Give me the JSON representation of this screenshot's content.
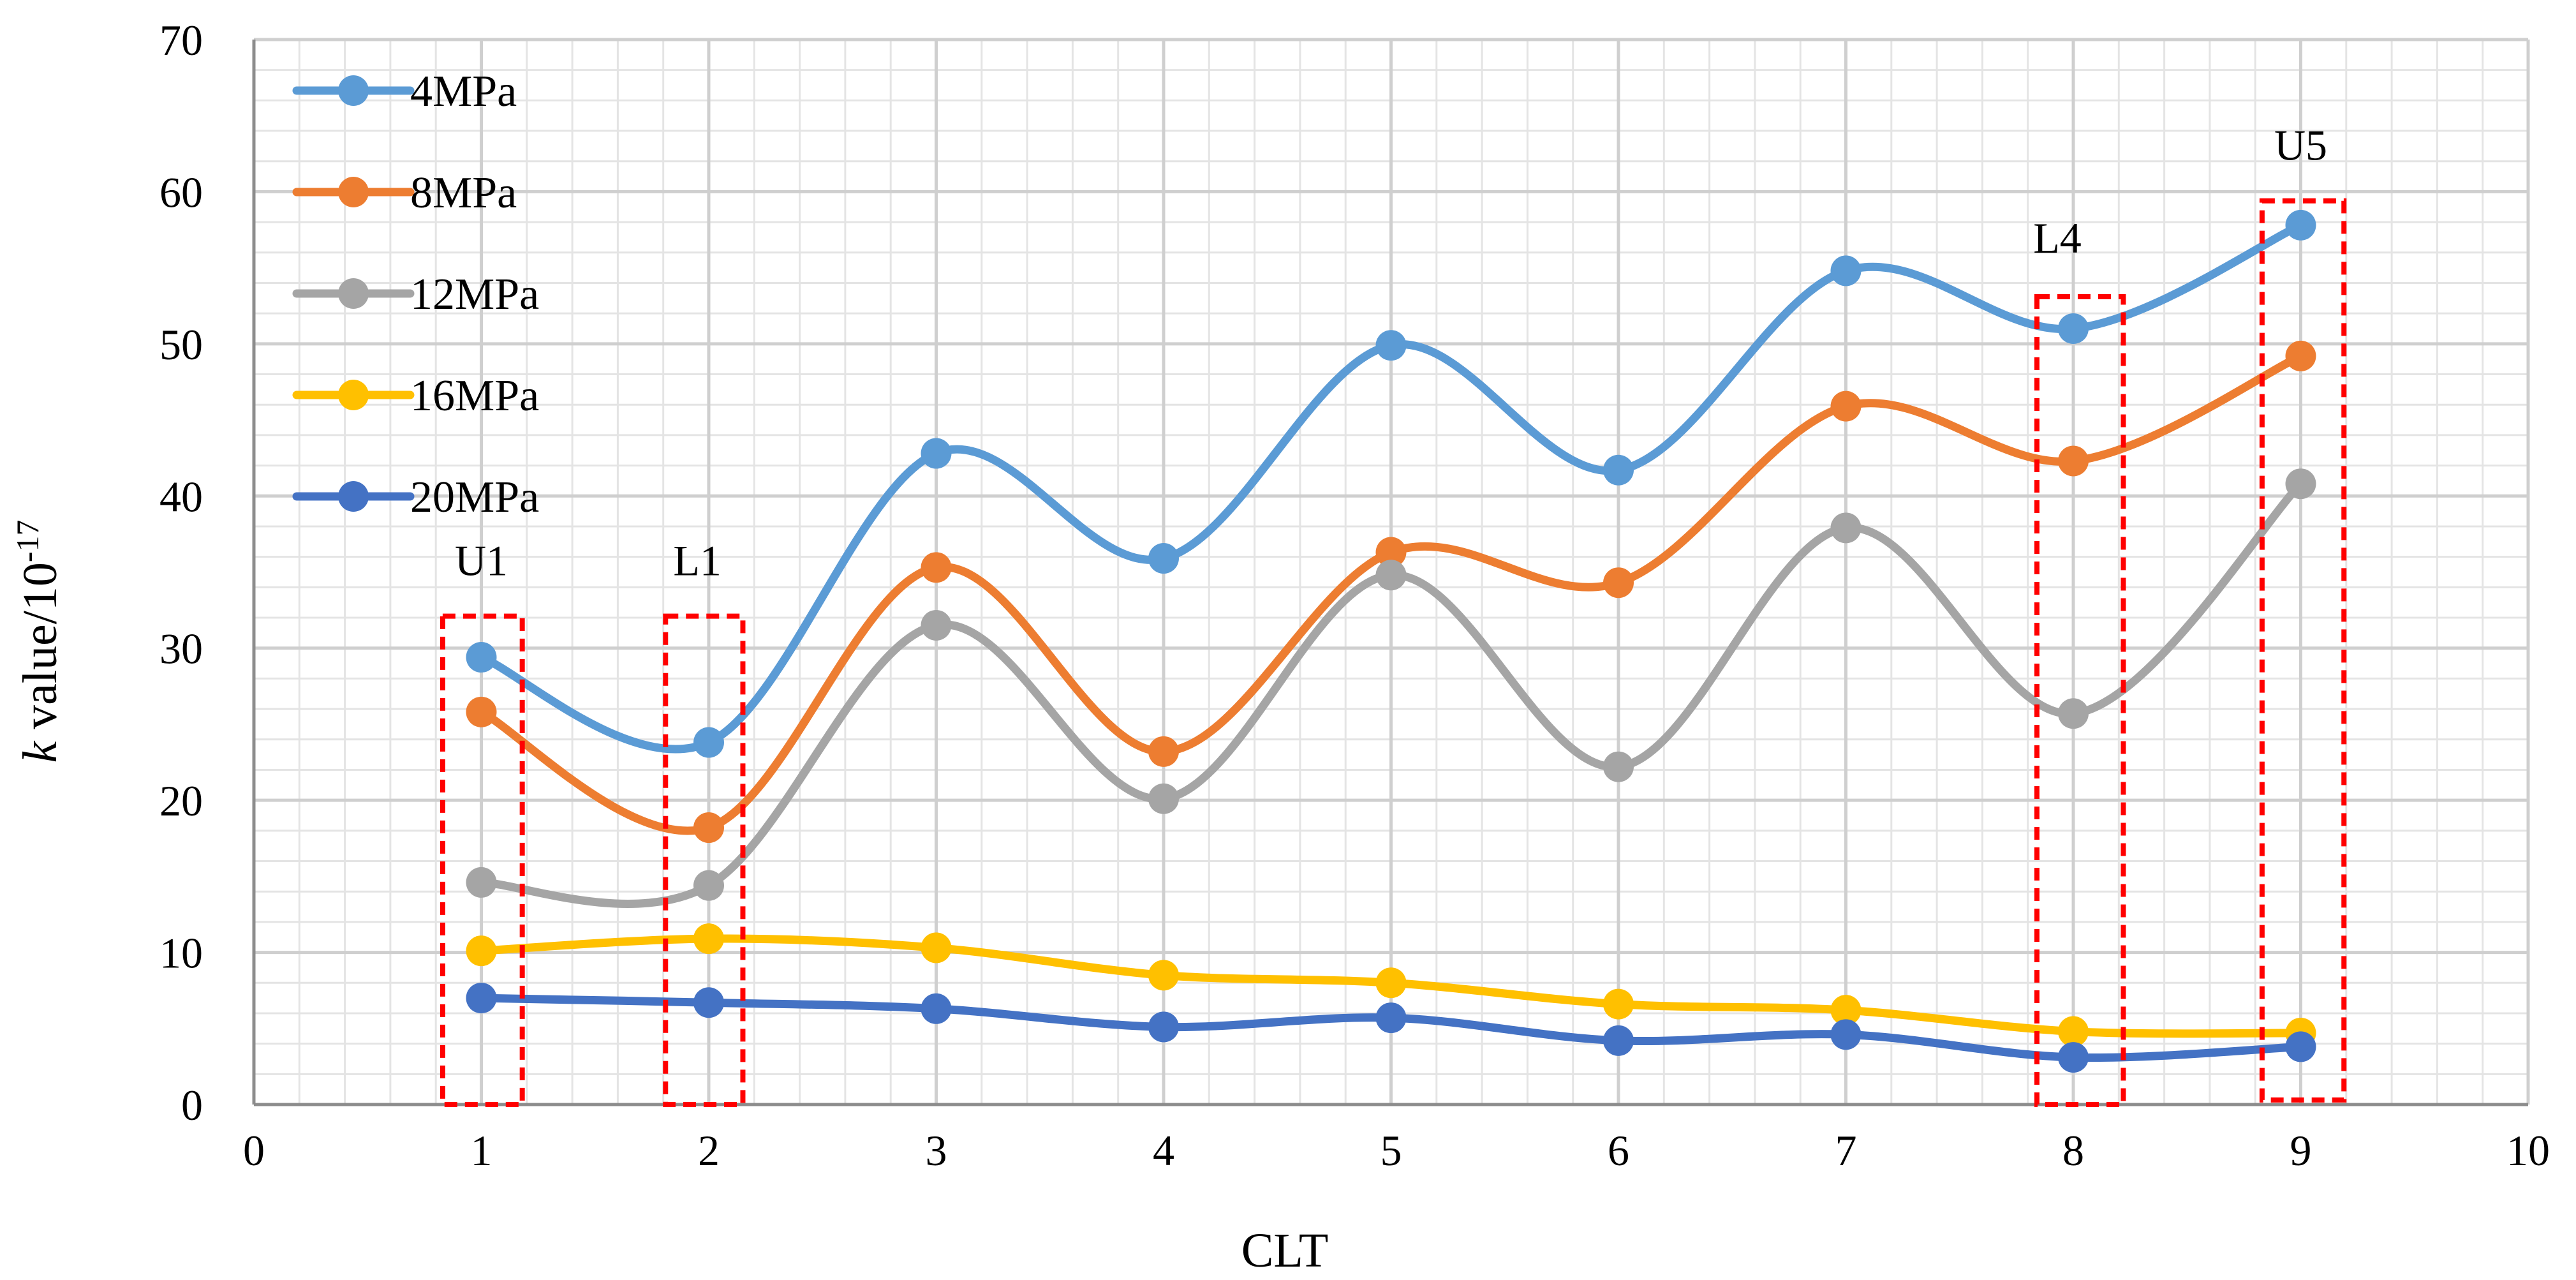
{
  "chart_data": {
    "type": "line",
    "title": "",
    "xlabel": "CLT",
    "ylabel_italic": "k",
    "ylabel_rest": " value/10",
    "ylabel_exponent": "-17",
    "xlim": [
      0,
      10
    ],
    "ylim": [
      0,
      70
    ],
    "x_ticks": [
      0,
      1,
      2,
      3,
      4,
      5,
      6,
      7,
      8,
      9,
      10
    ],
    "y_ticks": [
      0,
      10,
      20,
      30,
      40,
      50,
      60,
      70
    ],
    "grid": true,
    "minor_grid": true,
    "smooth_lines": true,
    "legend_position": "top-left",
    "x": [
      1,
      2,
      3,
      4,
      5,
      6,
      7,
      8,
      9
    ],
    "series": [
      {
        "name": "4MPa",
        "color": "#5B9BD5",
        "values": [
          29.4,
          23.8,
          42.8,
          35.9,
          49.9,
          41.7,
          54.8,
          51.0,
          57.8
        ]
      },
      {
        "name": "8MPa",
        "color": "#ED7D31",
        "values": [
          25.8,
          18.2,
          35.3,
          23.2,
          36.3,
          34.3,
          45.9,
          42.3,
          49.2
        ]
      },
      {
        "name": "12MPa",
        "color": "#A5A5A5",
        "values": [
          14.6,
          14.4,
          31.5,
          20.1,
          34.8,
          22.2,
          37.9,
          25.7,
          40.8
        ]
      },
      {
        "name": "16MPa",
        "color": "#FFC000",
        "values": [
          10.1,
          10.9,
          10.3,
          8.5,
          8.0,
          6.6,
          6.2,
          4.8,
          4.7
        ]
      },
      {
        "name": "20MPa",
        "color": "#4472C4",
        "values": [
          7.0,
          6.7,
          6.3,
          5.1,
          5.7,
          4.2,
          4.6,
          3.1,
          3.8
        ]
      }
    ],
    "annotations": [
      {
        "label": "U1",
        "x_range": [
          0.83,
          1.18
        ],
        "y_range": [
          0,
          32.1
        ],
        "label_x": 1.0,
        "label_y": 34.8
      },
      {
        "label": "L1",
        "x_range": [
          1.81,
          2.15
        ],
        "y_range": [
          0,
          32.1
        ],
        "label_x": 1.95,
        "label_y": 34.8
      },
      {
        "label": "L4",
        "x_range": [
          7.84,
          8.22
        ],
        "y_range": [
          0,
          53.1
        ],
        "label_x": 7.93,
        "label_y": 56.0
      },
      {
        "label": "U5",
        "x_range": [
          8.83,
          9.19
        ],
        "y_range": [
          0.3,
          59.4
        ],
        "label_x": 9.0,
        "label_y": 62.1
      }
    ],
    "annotation_color": "#FF0000"
  }
}
